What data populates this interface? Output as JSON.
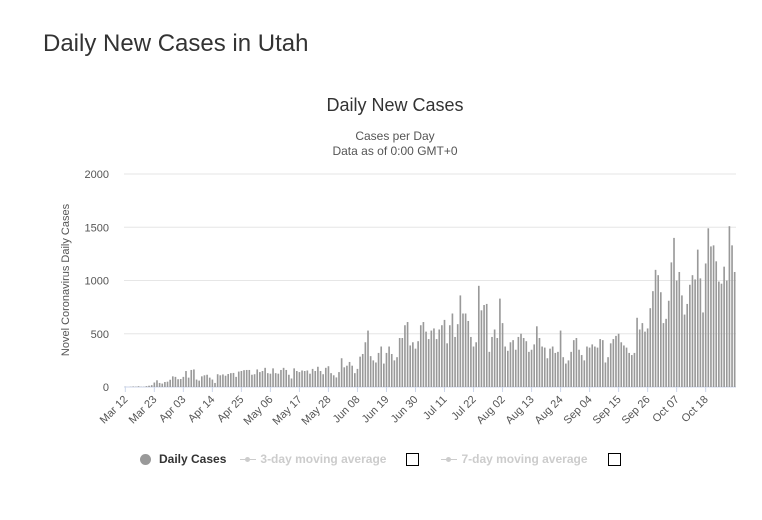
{
  "page": {
    "title": "Daily New Cases in Utah"
  },
  "chart_data": {
    "type": "bar",
    "title": "Daily New Cases",
    "subtitle": "Cases per Day",
    "subtitle2": "Data as of 0:00 GMT+0",
    "xlabel": "",
    "ylabel": "Novel Coronavirus Daily Cases",
    "ylim": [
      0,
      2000
    ],
    "yticks": [
      "0",
      "500",
      "1000",
      "1500",
      "2000"
    ],
    "grid": true,
    "legend_position": "bottom",
    "bar_color": "#999999",
    "start_date": "2020-03-12",
    "tick_labels": [
      "Mar 12",
      "Mar 23",
      "Apr 03",
      "Apr 14",
      "Apr 25",
      "May 06",
      "May 17",
      "May 28",
      "Jun 08",
      "Jun 19",
      "Jun 30",
      "Jul 11",
      "Jul 22",
      "Aug 02",
      "Aug 13",
      "Aug 24",
      "Sep 04",
      "Sep 15",
      "Sep 26",
      "Oct 07",
      "Oct 18"
    ],
    "values": [
      2,
      0,
      2,
      5,
      3,
      7,
      2,
      2,
      8,
      12,
      17,
      42,
      63,
      38,
      32,
      47,
      50,
      68,
      100,
      95,
      73,
      75,
      95,
      150,
      88,
      160,
      165,
      70,
      60,
      100,
      110,
      115,
      88,
      70,
      38,
      120,
      110,
      118,
      106,
      122,
      130,
      132,
      95,
      145,
      150,
      158,
      160,
      160,
      115,
      120,
      165,
      140,
      150,
      180,
      130,
      125,
      175,
      130,
      125,
      160,
      180,
      160,
      115,
      80,
      175,
      150,
      140,
      155,
      150,
      155,
      125,
      170,
      150,
      190,
      150,
      120,
      180,
      195,
      130,
      110,
      90,
      140,
      270,
      185,
      200,
      235,
      200,
      130,
      170,
      285,
      310,
      420,
      530,
      290,
      250,
      230,
      320,
      380,
      220,
      320,
      380,
      310,
      250,
      280,
      460,
      460,
      580,
      610,
      390,
      420,
      360,
      430,
      580,
      610,
      520,
      450,
      530,
      550,
      450,
      540,
      580,
      630,
      410,
      580,
      690,
      470,
      590,
      860,
      690,
      690,
      620,
      470,
      380,
      420,
      950,
      720,
      770,
      780,
      330,
      470,
      540,
      460,
      830,
      600,
      380,
      340,
      420,
      440,
      350,
      470,
      500,
      460,
      430,
      330,
      350,
      400,
      570,
      460,
      380,
      370,
      270,
      360,
      380,
      320,
      330,
      530,
      280,
      220,
      250,
      330,
      440,
      460,
      350,
      300,
      250,
      380,
      370,
      400,
      380,
      370,
      450,
      440,
      230,
      280,
      410,
      450,
      480,
      500,
      420,
      390,
      370,
      320,
      300,
      320,
      650,
      540,
      600,
      520,
      550,
      740,
      900,
      1100,
      1050,
      890,
      600,
      640,
      810,
      1170,
      1400,
      1000,
      1080,
      860,
      680,
      780,
      960,
      1050,
      1010,
      1290,
      1020,
      700,
      1160,
      1490,
      1320,
      1330,
      1180,
      990,
      970,
      1130,
      1000,
      1510,
      1330,
      1080
    ]
  },
  "legend": {
    "items": [
      {
        "label": "Daily Cases",
        "color": "#999999"
      },
      {
        "label": "3-day moving average"
      },
      {
        "label": "7-day moving average"
      }
    ]
  }
}
